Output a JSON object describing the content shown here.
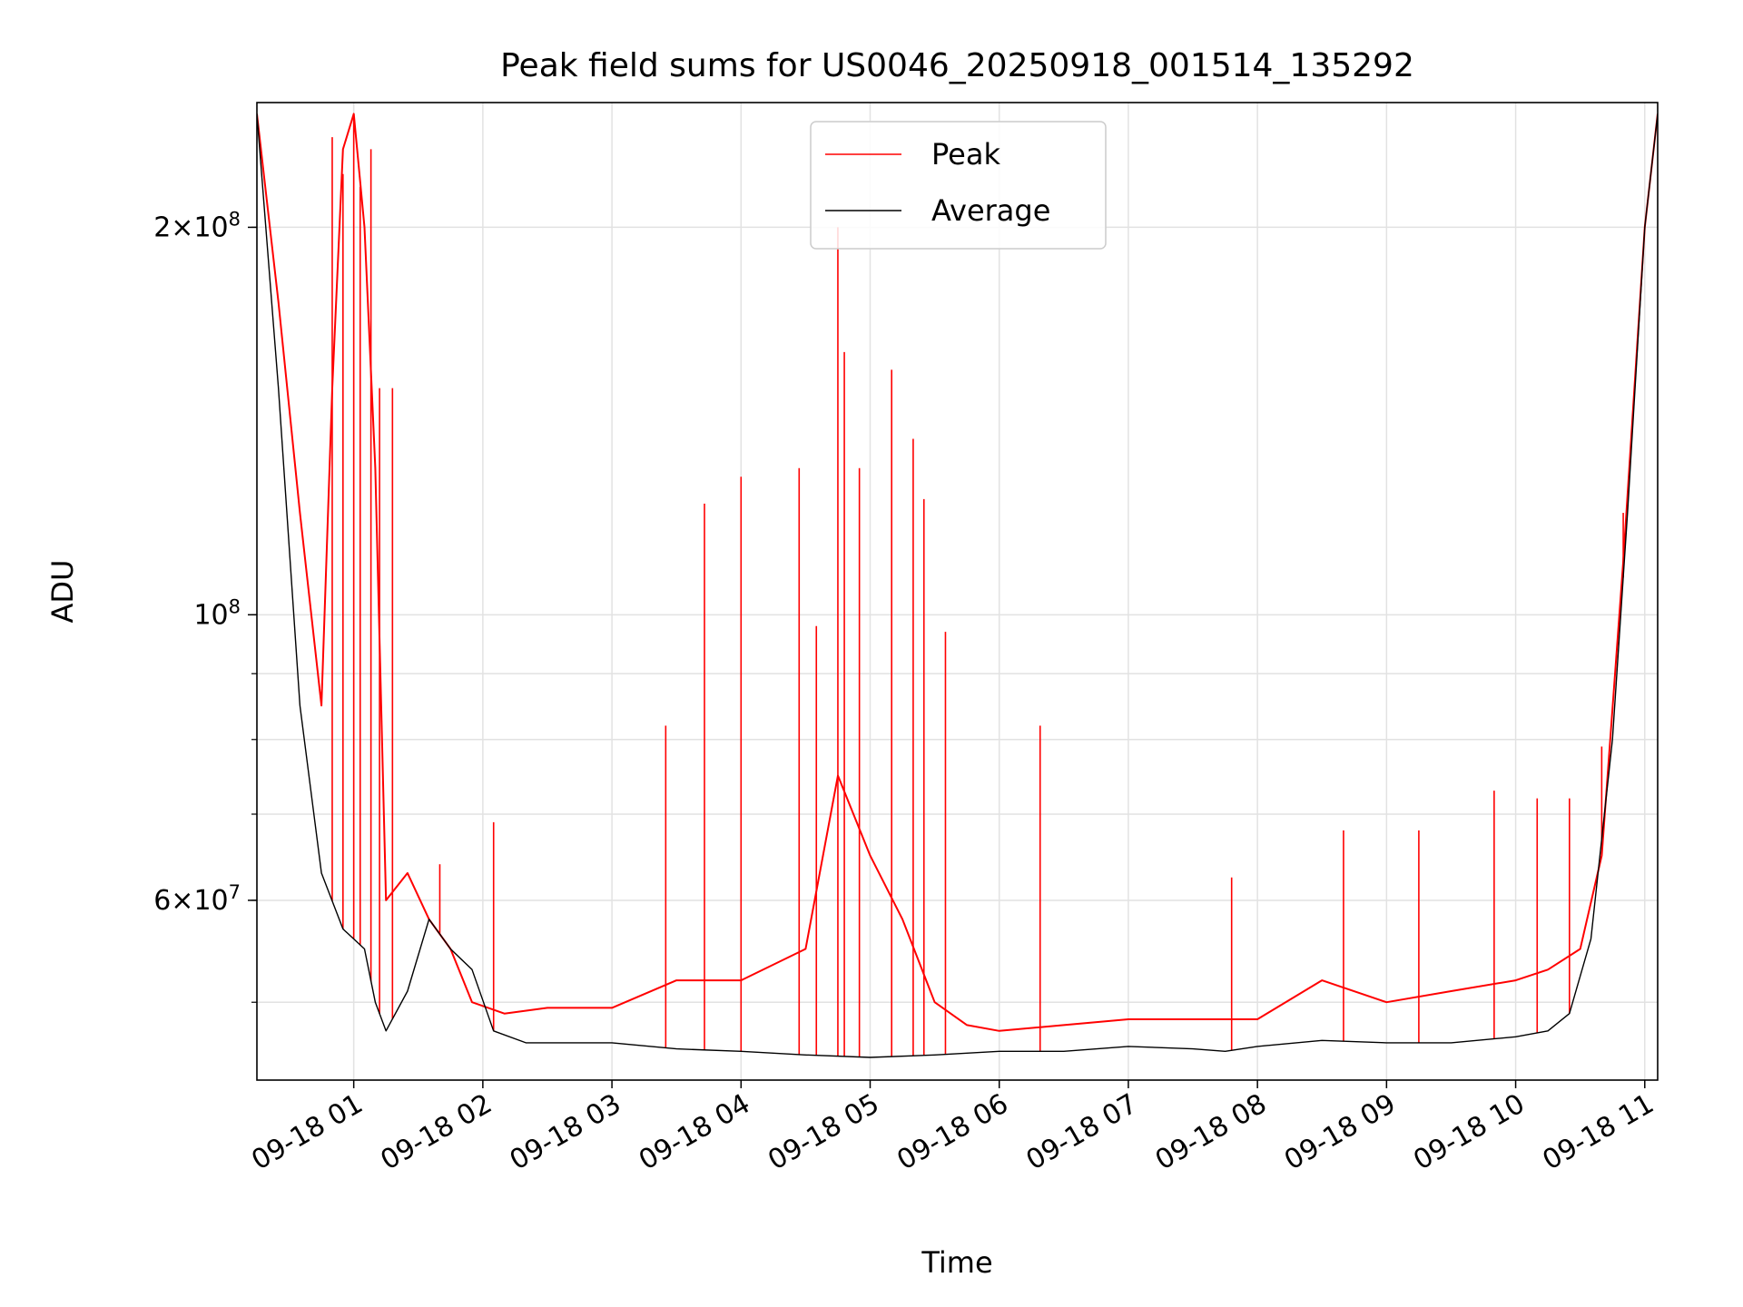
{
  "chart_data": {
    "type": "line",
    "title": "Peak field sums for US0046_20250918_001514_135292",
    "xlabel": "Time",
    "ylabel": "ADU",
    "yscale": "log",
    "ylim": [
      43500000,
      250000000
    ],
    "xlim": [
      "09-18 00:15",
      "09-18 11:06"
    ],
    "xticks": [
      "09-18 01",
      "09-18 02",
      "09-18 03",
      "09-18 04",
      "09-18 05",
      "09-18 06",
      "09-18 07",
      "09-18 08",
      "09-18 09",
      "09-18 10",
      "09-18 11"
    ],
    "yticks": [
      {
        "value": 200000000,
        "mantissa": "2",
        "exponent": "8"
      },
      {
        "value": 100000000,
        "mantissa": "",
        "exponent": "8"
      },
      {
        "value": 60000000,
        "mantissa": "6",
        "exponent": "7"
      }
    ],
    "grid": true,
    "legend_position": "upper center",
    "series": [
      {
        "name": "Peak",
        "color": "#ff0000",
        "x": [
          "00:15",
          "00:25",
          "00:35",
          "00:45",
          "00:50",
          "00:55",
          "01:00",
          "01:05",
          "01:10",
          "01:15",
          "01:25",
          "01:35",
          "01:45",
          "01:55",
          "02:10",
          "02:30",
          "03:00",
          "03:30",
          "04:00",
          "04:30",
          "04:45",
          "05:00",
          "05:15",
          "05:30",
          "05:45",
          "06:00",
          "06:30",
          "07:00",
          "07:30",
          "08:00",
          "08:30",
          "09:00",
          "09:30",
          "10:00",
          "10:15",
          "10:30",
          "10:40",
          "10:50",
          "11:00",
          "11:06"
        ],
        "values": [
          245000000,
          175000000,
          120000000,
          85000000,
          150000000,
          230000000,
          245000000,
          200000000,
          130000000,
          60000000,
          63000000,
          58000000,
          55000000,
          50000000,
          49000000,
          49500000,
          49500000,
          52000000,
          52000000,
          55000000,
          75000000,
          65000000,
          58000000,
          50000000,
          48000000,
          47500000,
          48000000,
          48500000,
          48500000,
          48500000,
          52000000,
          50000000,
          51000000,
          52000000,
          53000000,
          55000000,
          65000000,
          110000000,
          200000000,
          245000000
        ],
        "spikes": [
          {
            "x": "00:50",
            "value": 235000000
          },
          {
            "x": "00:55",
            "value": 220000000
          },
          {
            "x": "01:00",
            "value": 245000000
          },
          {
            "x": "01:03",
            "value": 215000000
          },
          {
            "x": "01:08",
            "value": 230000000
          },
          {
            "x": "01:12",
            "value": 150000000
          },
          {
            "x": "01:18",
            "value": 150000000
          },
          {
            "x": "01:40",
            "value": 64000000
          },
          {
            "x": "02:05",
            "value": 69000000
          },
          {
            "x": "03:25",
            "value": 82000000
          },
          {
            "x": "03:43",
            "value": 122000000
          },
          {
            "x": "04:00",
            "value": 128000000
          },
          {
            "x": "04:27",
            "value": 130000000
          },
          {
            "x": "04:35",
            "value": 98000000
          },
          {
            "x": "04:45",
            "value": 200000000
          },
          {
            "x": "04:48",
            "value": 160000000
          },
          {
            "x": "04:55",
            "value": 130000000
          },
          {
            "x": "05:10",
            "value": 155000000
          },
          {
            "x": "05:20",
            "value": 137000000
          },
          {
            "x": "05:25",
            "value": 123000000
          },
          {
            "x": "05:35",
            "value": 97000000
          },
          {
            "x": "06:19",
            "value": 82000000
          },
          {
            "x": "07:48",
            "value": 62500000
          },
          {
            "x": "08:40",
            "value": 68000000
          },
          {
            "x": "09:15",
            "value": 68000000
          },
          {
            "x": "09:50",
            "value": 73000000
          },
          {
            "x": "10:10",
            "value": 72000000
          },
          {
            "x": "10:25",
            "value": 72000000
          },
          {
            "x": "10:40",
            "value": 79000000
          },
          {
            "x": "10:50",
            "value": 120000000
          }
        ]
      },
      {
        "name": "Average",
        "color": "#000000",
        "x": [
          "00:15",
          "00:25",
          "00:35",
          "00:45",
          "00:55",
          "01:05",
          "01:10",
          "01:15",
          "01:25",
          "01:35",
          "01:45",
          "01:55",
          "02:05",
          "02:20",
          "02:40",
          "03:00",
          "03:30",
          "04:00",
          "04:30",
          "05:00",
          "05:30",
          "06:00",
          "06:30",
          "07:00",
          "07:30",
          "07:45",
          "08:00",
          "08:30",
          "09:00",
          "09:30",
          "10:00",
          "10:15",
          "10:25",
          "10:35",
          "10:45",
          "10:52",
          "11:00",
          "11:06"
        ],
        "values": [
          245000000,
          150000000,
          85000000,
          63000000,
          57000000,
          55000000,
          50000000,
          47500000,
          51000000,
          58000000,
          55000000,
          53000000,
          47500000,
          46500000,
          46500000,
          46500000,
          46000000,
          45800000,
          45500000,
          45300000,
          45500000,
          45800000,
          45800000,
          46200000,
          46000000,
          45800000,
          46200000,
          46700000,
          46500000,
          46500000,
          47000000,
          47500000,
          49000000,
          56000000,
          80000000,
          120000000,
          200000000,
          245000000
        ]
      }
    ]
  }
}
